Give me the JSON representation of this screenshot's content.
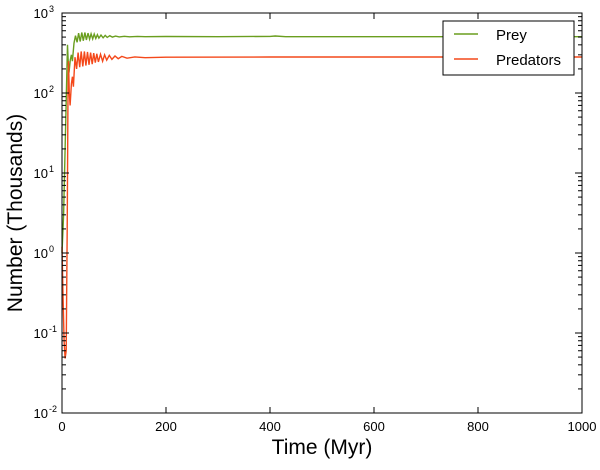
{
  "chart_data": {
    "type": "line",
    "title": "",
    "xlabel": "Time (Myr)",
    "ylabel": "Number (Thousands)",
    "xlim": [
      0,
      1000
    ],
    "ylim": [
      0.01,
      1000
    ],
    "yscale": "log",
    "grid": false,
    "legend_position": "top-right",
    "x_ticks": [
      "0",
      "200",
      "400",
      "600",
      "800",
      "1000"
    ],
    "x_tick_values": [
      0,
      200,
      400,
      600,
      800,
      1000
    ],
    "y_ticks": [
      {
        "base": "10",
        "exp": "-2",
        "value": 0.01
      },
      {
        "base": "10",
        "exp": "-1",
        "value": 0.1
      },
      {
        "base": "10",
        "exp": "0",
        "value": 1
      },
      {
        "base": "10",
        "exp": "1",
        "value": 10
      },
      {
        "base": "10",
        "exp": "2",
        "value": 100
      },
      {
        "base": "10",
        "exp": "3",
        "value": 1000
      }
    ],
    "series": [
      {
        "name": "Prey",
        "color": "#6a9e1f",
        "points": [
          [
            0,
            1
          ],
          [
            3,
            3
          ],
          [
            6,
            20
          ],
          [
            9,
            150
          ],
          [
            10.5,
            400
          ],
          [
            12,
            250
          ],
          [
            13.5,
            180
          ],
          [
            16,
            260
          ],
          [
            18,
            300
          ],
          [
            20,
            250
          ],
          [
            23,
            420
          ],
          [
            26,
            520
          ],
          [
            29,
            430
          ],
          [
            32,
            560
          ],
          [
            35,
            440
          ],
          [
            38,
            570
          ],
          [
            41,
            450
          ],
          [
            44,
            570
          ],
          [
            47,
            460
          ],
          [
            50,
            560
          ],
          [
            53,
            470
          ],
          [
            56,
            550
          ],
          [
            59,
            475
          ],
          [
            62,
            545
          ],
          [
            65,
            480
          ],
          [
            68,
            535
          ],
          [
            71,
            485
          ],
          [
            75,
            530
          ],
          [
            79,
            490
          ],
          [
            83,
            525
          ],
          [
            87,
            495
          ],
          [
            92,
            520
          ],
          [
            97,
            500
          ],
          [
            103,
            515
          ],
          [
            110,
            502
          ],
          [
            120,
            512
          ],
          [
            130,
            504
          ],
          [
            145,
            510
          ],
          [
            160,
            505
          ],
          [
            200,
            508
          ],
          [
            300,
            506
          ],
          [
            400,
            510
          ],
          [
            410,
            516
          ],
          [
            430,
            505
          ],
          [
            600,
            505
          ],
          [
            1000,
            505
          ]
        ]
      },
      {
        "name": "Predators",
        "color": "#f4481a",
        "points": [
          [
            0,
            1.2
          ],
          [
            2,
            0.3
          ],
          [
            4,
            0.08
          ],
          [
            6,
            0.048
          ],
          [
            8,
            0.06
          ],
          [
            10,
            2
          ],
          [
            11.5,
            100
          ],
          [
            12.5,
            250
          ],
          [
            14,
            100
          ],
          [
            15.5,
            70
          ],
          [
            18,
            130
          ],
          [
            20,
            160
          ],
          [
            22,
            120
          ],
          [
            25,
            280
          ],
          [
            28,
            200
          ],
          [
            31,
            320
          ],
          [
            34,
            210
          ],
          [
            37,
            330
          ],
          [
            40,
            215
          ],
          [
            43,
            330
          ],
          [
            46,
            220
          ],
          [
            49,
            325
          ],
          [
            52,
            225
          ],
          [
            55,
            320
          ],
          [
            58,
            230
          ],
          [
            61,
            315
          ],
          [
            64,
            240
          ],
          [
            67,
            310
          ],
          [
            70,
            245
          ],
          [
            74,
            305
          ],
          [
            78,
            250
          ],
          [
            82,
            300
          ],
          [
            86,
            258
          ],
          [
            91,
            295
          ],
          [
            96,
            263
          ],
          [
            102,
            290
          ],
          [
            108,
            268
          ],
          [
            115,
            287
          ],
          [
            125,
            272
          ],
          [
            140,
            283
          ],
          [
            160,
            276
          ],
          [
            200,
            280
          ],
          [
            400,
            282
          ],
          [
            1000,
            282
          ]
        ]
      }
    ]
  }
}
